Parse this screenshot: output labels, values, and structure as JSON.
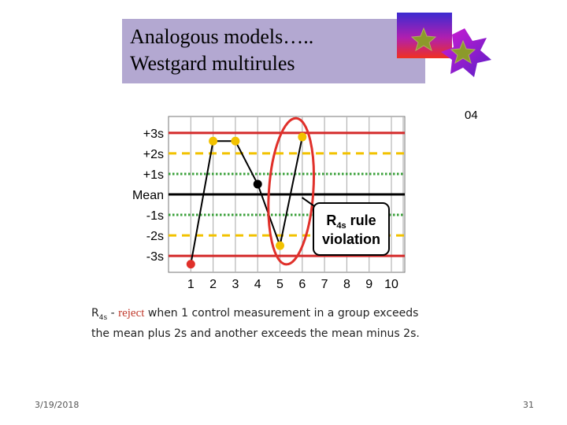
{
  "slide": {
    "title_line1": "Analogous models…..",
    "title_line2": "Westgard multirules",
    "code": "04",
    "date": "3/19/2018",
    "page": "31"
  },
  "description": {
    "rule_main": "R",
    "rule_sub": "4s",
    "dash": " - ",
    "reject": "reject",
    "text": " when 1 control measurement in a group exceeds the mean plus 2s and another exceeds the mean minus 2s."
  },
  "chart_data": {
    "type": "line",
    "y_levels": [
      {
        "label": "+3s",
        "value": 3,
        "style": "solid",
        "color": "#d42a2a"
      },
      {
        "label": "+2s",
        "value": 2,
        "style": "dashed",
        "color": "#f2c200"
      },
      {
        "label": "+1s",
        "value": 1,
        "style": "dotted",
        "color": "#3aa03a"
      },
      {
        "label": "Mean",
        "value": 0,
        "style": "solid",
        "color": "#000000"
      },
      {
        "label": "-1s",
        "value": -1,
        "style": "dotted",
        "color": "#3aa03a"
      },
      {
        "label": "-2s",
        "value": -2,
        "style": "dashed",
        "color": "#f2c200"
      },
      {
        "label": "-3s",
        "value": -3,
        "style": "solid",
        "color": "#d42a2a"
      }
    ],
    "x_ticks": [
      "1",
      "2",
      "3",
      "4",
      "5",
      "6",
      "7",
      "8",
      "9",
      "10"
    ],
    "points": [
      {
        "x": 1,
        "y": -3.4,
        "color": "#e0302a"
      },
      {
        "x": 2,
        "y": 2.6,
        "color": "#f2c200"
      },
      {
        "x": 3,
        "y": 2.6,
        "color": "#f2c200"
      },
      {
        "x": 4,
        "y": 0.5,
        "color": "#000000"
      },
      {
        "x": 5,
        "y": -2.5,
        "color": "#f2c200"
      },
      {
        "x": 6,
        "y": 2.8,
        "color": "#f2c200"
      }
    ],
    "ylim": [
      -3.8,
      3.8
    ],
    "xlim": [
      0,
      10.6
    ],
    "grid": true,
    "highlight_points": [
      5,
      6
    ],
    "annotation": {
      "main": "R",
      "sub": "4s",
      "line1_rest": " rule",
      "line2": "violation"
    }
  },
  "colors": {
    "title_bg": "#b3a8d1",
    "highlight": "#e0302a",
    "reject_text": "#c0392b"
  }
}
